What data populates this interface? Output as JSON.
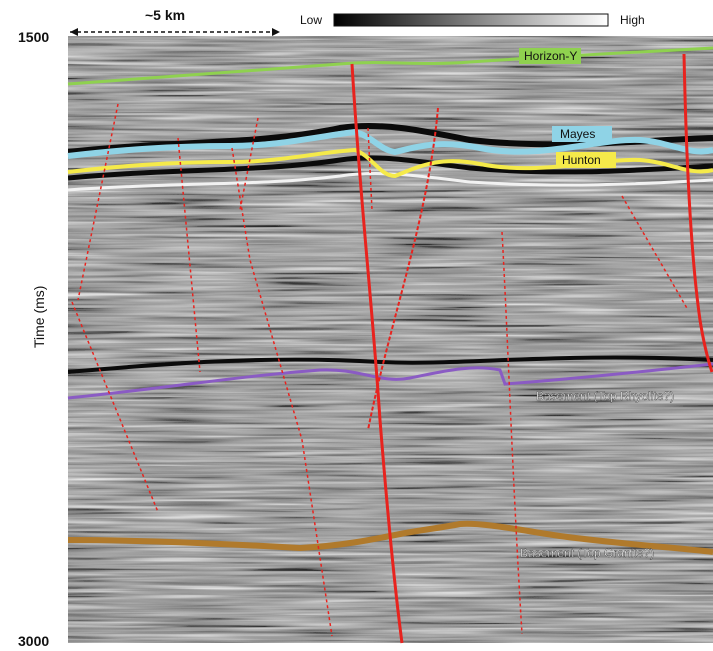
{
  "scale_bar": {
    "label": "~5 km"
  },
  "amplitude_legend": {
    "low_label": "Low",
    "high_label": "High"
  },
  "axis": {
    "ylabel": "Time (ms)",
    "top_tick": "1500",
    "bottom_tick": "3000"
  },
  "horizons": {
    "horizon_y": {
      "label": "Horizon-Y",
      "color": "#8fd14f"
    },
    "mayes": {
      "label": "Mayes",
      "color": "#8fd3e6"
    },
    "hunton": {
      "label": "Hunton",
      "color": "#f5ea4a"
    },
    "basement_rhyolite": {
      "label": "Basement (Top Rhyolite?)",
      "color": "#8a5bc4"
    },
    "basement_granite": {
      "label": "Basement (Top Granite?)",
      "color": "#b07a2c"
    }
  },
  "fault_color": "#e8231e"
}
